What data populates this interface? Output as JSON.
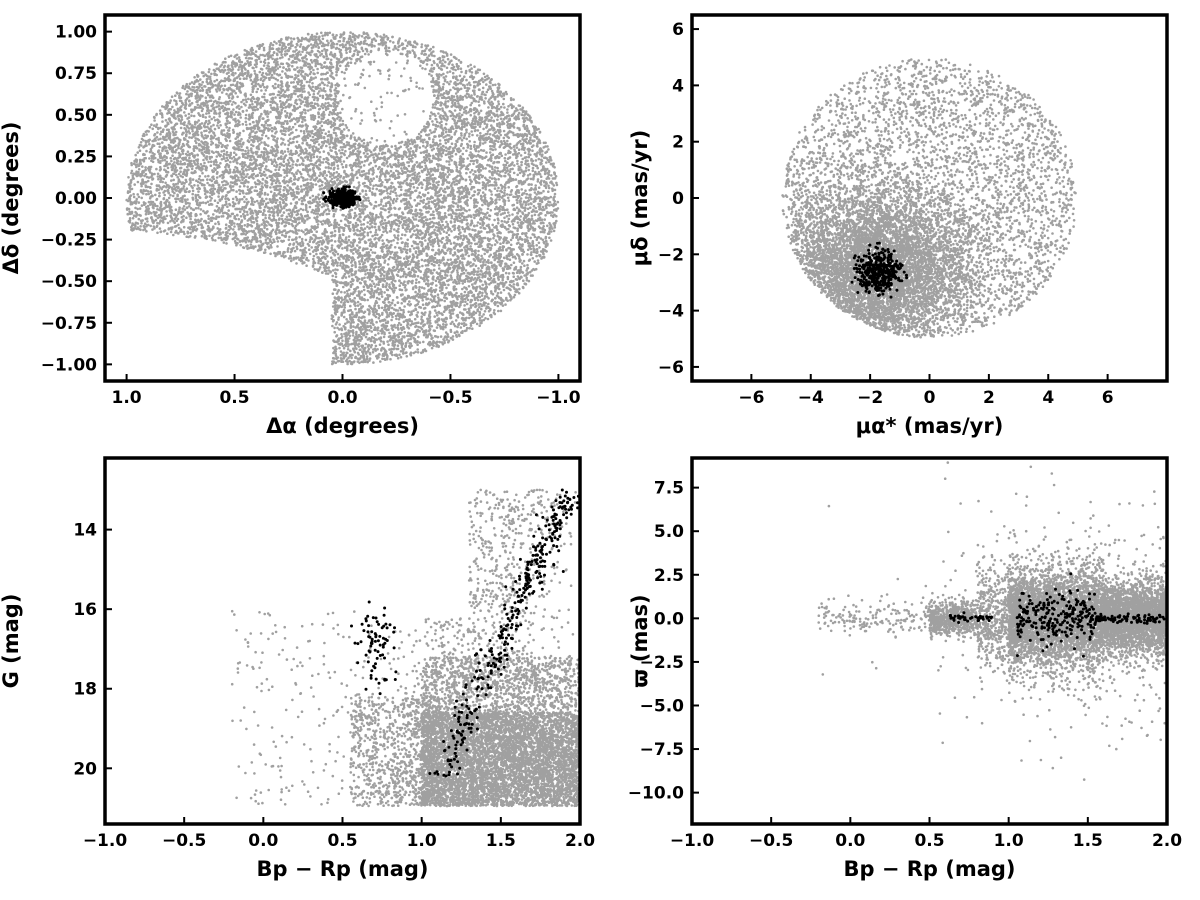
{
  "colors": {
    "field": "#a0a0a0",
    "members": "#000000",
    "frame": "#000000"
  },
  "chart_data": [
    {
      "type": "scatter",
      "title": "",
      "xlabel": "Δα (degrees)",
      "ylabel": "Δδ (degrees)",
      "xlim": [
        1.1,
        -1.1
      ],
      "ylim": [
        -1.1,
        1.1
      ],
      "x_inverted": true,
      "xticks": [
        1.0,
        0.5,
        0.0,
        -0.5,
        -1.0
      ],
      "xtick_labels": [
        "1.0",
        "0.5",
        "0.0",
        "−0.5",
        "−1.0"
      ],
      "yticks": [
        1.0,
        0.75,
        0.5,
        0.25,
        0.0,
        -0.25,
        -0.5,
        -0.75,
        -1.0
      ],
      "ytick_labels": [
        "1.00",
        "0.75",
        "0.50",
        "0.25",
        "0.00",
        "−0.25",
        "−0.50",
        "−0.75",
        "−1.00"
      ],
      "grid": false,
      "series": [
        {
          "color": "#a0a0a0",
          "distribution": "field stars filling a 1° radius disk with a gap at Δα 0 to -0.4, Δδ 0.3 to 0.9 and a missing lower-left wedge",
          "count_shown": 12000
        },
        {
          "color": "#000000",
          "distribution": "compact cluster members",
          "center": [
            0.0,
            0.0
          ],
          "spread": [
            0.03,
            0.025
          ],
          "count_shown": 400
        }
      ]
    },
    {
      "type": "scatter",
      "title": "",
      "xlabel": "μα* (mas/yr)",
      "ylabel": "μδ (mas/yr)",
      "xlim": [
        -8,
        8
      ],
      "ylim": [
        -6.5,
        6.5
      ],
      "xticks": [
        -6,
        -4,
        -2,
        0,
        2,
        4,
        6
      ],
      "xtick_labels": [
        "−6",
        "−4",
        "−2",
        "0",
        "2",
        "4",
        "6"
      ],
      "yticks": [
        6,
        4,
        2,
        0,
        -2,
        -4,
        -6
      ],
      "ytick_labels": [
        "6",
        "4",
        "2",
        "0",
        "−2",
        "−4",
        "−6"
      ],
      "grid": false,
      "series": [
        {
          "color": "#a0a0a0",
          "distribution": "field stars within a circle of radius 5 mas/yr centred on (0, 0), densest in lower-left",
          "count_shown": 9000
        },
        {
          "color": "#000000",
          "distribution": "cluster members",
          "center": [
            -1.7,
            -2.6
          ],
          "spread": [
            0.38,
            0.38
          ],
          "count_shown": 380
        }
      ]
    },
    {
      "type": "scatter",
      "title": "",
      "xlabel": "Bp − Rp (mag)",
      "ylabel": "G (mag)",
      "xlim": [
        -1.0,
        2.0
      ],
      "ylim": [
        21.4,
        12.2
      ],
      "y_inverted": true,
      "xticks": [
        -1.0,
        -0.5,
        0.0,
        0.5,
        1.0,
        1.5,
        2.0
      ],
      "xtick_labels": [
        "−1.0",
        "−0.5",
        "0.0",
        "0.5",
        "1.0",
        "1.5",
        "2.0"
      ],
      "yticks": [
        20,
        18,
        16,
        14
      ],
      "ytick_labels": [
        "20",
        "18",
        "16",
        "14"
      ],
      "grid": false,
      "series": [
        {
          "color": "#a0a0a0",
          "distribution": "field colour-magnitude diagram, dense block at Bp−Rp 1.0–2.0, G 17–21",
          "count_shown": 9000
        },
        {
          "color": "#000000",
          "distribution": "cluster sequence: red giant branch G 20→13 at Bp−Rp 1.1→1.95 plus red clump near Bp−Rp 0.7, G 16.2–17.6",
          "count_shown": 420
        }
      ]
    },
    {
      "type": "scatter",
      "title": "",
      "xlabel": "Bp − Rp (mag)",
      "ylabel": "ϖ (mas)",
      "xlim": [
        -1.0,
        2.0
      ],
      "ylim": [
        -11.8,
        9.2
      ],
      "xticks": [
        -1.0,
        -0.5,
        0.0,
        0.5,
        1.0,
        1.5,
        2.0
      ],
      "xtick_labels": [
        "−1.0",
        "−0.5",
        "0.0",
        "0.5",
        "1.0",
        "1.5",
        "2.0"
      ],
      "yticks": [
        7.5,
        5.0,
        2.5,
        0.0,
        -2.5,
        -5.0,
        -7.5,
        -10.0
      ],
      "ytick_labels": [
        "7.5",
        "5.0",
        "2.5",
        "0.0",
        "−2.5",
        "−5.0",
        "−7.5",
        "−10.0"
      ],
      "grid": false,
      "series": [
        {
          "color": "#a0a0a0",
          "distribution": "field parallaxes centred on 0, spread widest near Bp−Rp 1.0–1.5",
          "count_shown": 9000
        },
        {
          "color": "#000000",
          "distribution": "cluster members near ϖ ≈ 0 across Bp−Rp 0.6–2.0",
          "count_shown": 380
        }
      ]
    }
  ]
}
